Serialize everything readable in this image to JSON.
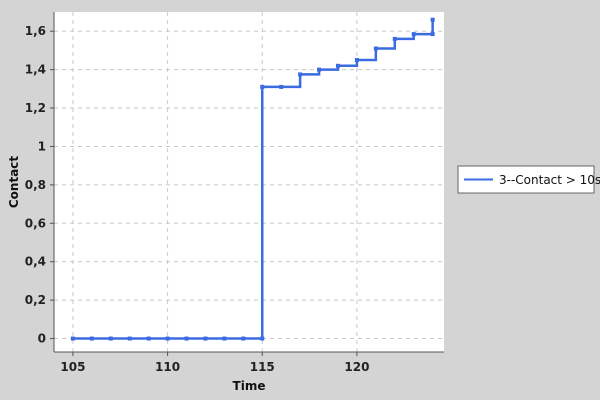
{
  "chart_data": {
    "type": "line",
    "title": "",
    "xlabel": "Time",
    "ylabel": "Contact",
    "xlim": [
      104,
      124.6
    ],
    "ylim": [
      -0.07,
      1.7
    ],
    "x_ticks": [
      105,
      110,
      115,
      120
    ],
    "x_tick_labels": [
      "105",
      "110",
      "115",
      "120"
    ],
    "y_ticks": [
      0,
      0.2,
      0.4,
      0.6,
      0.8,
      1,
      1.2,
      1.4,
      1.6
    ],
    "y_tick_labels": [
      "0",
      "0,2",
      "0,4",
      "0,6",
      "0,8",
      "1",
      "1,2",
      "1,4",
      "1,6"
    ],
    "grid": true,
    "legend_position": "right",
    "series": [
      {
        "name": "3--Contact > 10s",
        "color": "#3a6be0",
        "step": true,
        "x": [
          105,
          106,
          107,
          108,
          109,
          110,
          111,
          112,
          113,
          114,
          115,
          115,
          116,
          117,
          118,
          119,
          120,
          121,
          122,
          123,
          124,
          124
        ],
        "y": [
          0,
          0,
          0,
          0,
          0,
          0,
          0,
          0,
          0,
          0,
          0,
          1.31,
          1.31,
          1.375,
          1.4,
          1.42,
          1.45,
          1.51,
          1.56,
          1.585,
          1.585,
          1.66
        ]
      }
    ]
  }
}
